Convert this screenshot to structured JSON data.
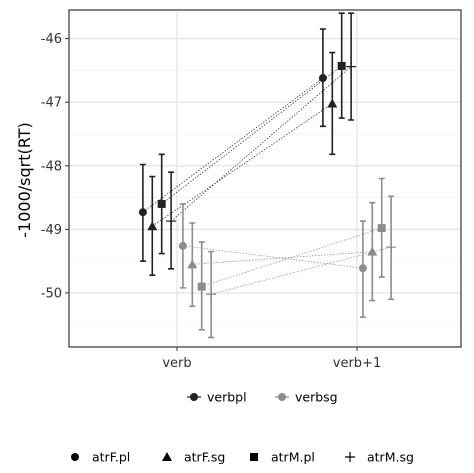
{
  "chart_data": {
    "type": "scatter",
    "x_categories": [
      "verb",
      "verb+1"
    ],
    "ylabel": "-1000/sqrt(RT)",
    "xlabel": "",
    "ylim": [
      -50.85,
      -45.55
    ],
    "yticks": [
      -50,
      -49,
      -48,
      -47,
      -46
    ],
    "y_tick_labels": [
      "-50",
      "-49",
      "-48",
      "-47",
      "-46"
    ],
    "grid": true,
    "color_legend": {
      "position": "bottom",
      "entries": [
        {
          "label": "verbpl",
          "color": "#222222"
        },
        {
          "label": "verbsg",
          "color": "#8c8c8c"
        }
      ]
    },
    "shape_legend": {
      "position": "bottom",
      "entries": [
        {
          "label": "atrF.pl",
          "shape": "circle"
        },
        {
          "label": "atrF.sg",
          "shape": "triangle"
        },
        {
          "label": "atrM.pl",
          "shape": "square"
        },
        {
          "label": "atrM.sg",
          "shape": "plus"
        }
      ]
    },
    "series": [
      {
        "color_group": "verbpl",
        "shape_group": "atrF.pl",
        "offset": -3,
        "points": [
          {
            "x": "verb",
            "y": -48.73,
            "lo": -49.5,
            "hi": -47.98
          },
          {
            "x": "verb+1",
            "y": -46.62,
            "lo": -47.38,
            "hi": -45.85
          }
        ]
      },
      {
        "color_group": "verbpl",
        "shape_group": "atrF.sg",
        "offset": -1,
        "points": [
          {
            "x": "verb",
            "y": -48.95,
            "lo": -49.72,
            "hi": -48.17
          },
          {
            "x": "verb+1",
            "y": -47.02,
            "lo": -47.82,
            "hi": -46.22
          }
        ]
      },
      {
        "color_group": "verbpl",
        "shape_group": "atrM.pl",
        "offset": 1,
        "points": [
          {
            "x": "verb",
            "y": -48.6,
            "lo": -49.38,
            "hi": -47.82
          },
          {
            "x": "verb+1",
            "y": -46.43,
            "lo": -47.25,
            "hi": -45.6
          }
        ]
      },
      {
        "color_group": "verbpl",
        "shape_group": "atrM.sg",
        "offset": 3,
        "points": [
          {
            "x": "verb",
            "y": -48.87,
            "lo": -49.62,
            "hi": -48.1
          },
          {
            "x": "verb+1",
            "y": -46.44,
            "lo": -47.28,
            "hi": -45.6
          }
        ]
      },
      {
        "color_group": "verbsg",
        "shape_group": "atrF.pl",
        "offset": -3,
        "points": [
          {
            "x": "verb",
            "y": -49.26,
            "lo": -49.92,
            "hi": -48.6
          },
          {
            "x": "verb+1",
            "y": -49.61,
            "lo": -50.38,
            "hi": -48.87
          }
        ]
      },
      {
        "color_group": "verbsg",
        "shape_group": "atrF.sg",
        "offset": -1,
        "points": [
          {
            "x": "verb",
            "y": -49.55,
            "lo": -50.21,
            "hi": -48.9
          },
          {
            "x": "verb+1",
            "y": -49.35,
            "lo": -50.12,
            "hi": -48.58
          }
        ]
      },
      {
        "color_group": "verbsg",
        "shape_group": "atrM.pl",
        "offset": 1,
        "points": [
          {
            "x": "verb",
            "y": -49.9,
            "lo": -50.58,
            "hi": -49.2
          },
          {
            "x": "verb+1",
            "y": -48.98,
            "lo": -49.75,
            "hi": -48.2
          }
        ]
      },
      {
        "color_group": "verbsg",
        "shape_group": "atrM.sg",
        "offset": 3,
        "points": [
          {
            "x": "verb",
            "y": -50.02,
            "lo": -50.7,
            "hi": -49.35
          },
          {
            "x": "verb+1",
            "y": -49.28,
            "lo": -50.1,
            "hi": -48.48
          }
        ]
      }
    ]
  }
}
